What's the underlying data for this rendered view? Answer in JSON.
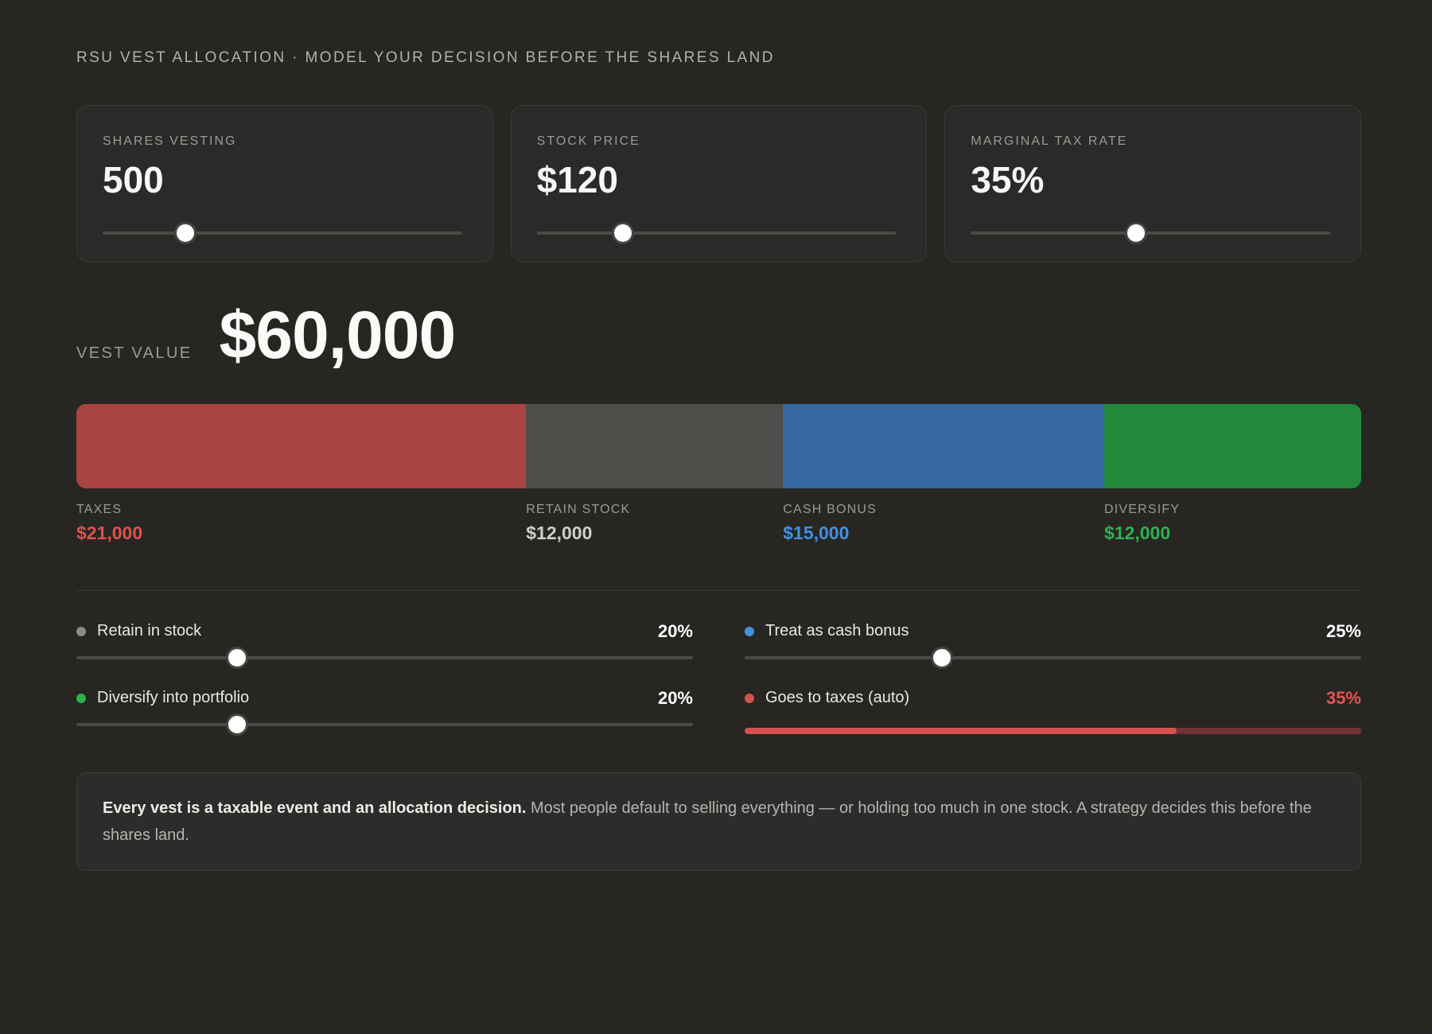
{
  "title": "RSU VEST ALLOCATION · MODEL YOUR DECISION BEFORE THE SHARES LAND",
  "inputs": [
    {
      "label": "SHARES VESTING",
      "value": "500",
      "slider_pct": 23
    },
    {
      "label": "STOCK PRICE",
      "value": "$120",
      "slider_pct": 24
    },
    {
      "label": "MARGINAL TAX RATE",
      "value": "35%",
      "slider_pct": 46
    }
  ],
  "vest": {
    "label": "VEST VALUE",
    "value": "$60,000"
  },
  "chart_data": {
    "type": "bar",
    "title": "Vest value allocation",
    "total_label": "VEST VALUE",
    "total": 60000,
    "segments": [
      {
        "label": "TAXES",
        "value": 21000,
        "display": "$21,000",
        "pct": 35,
        "color": "#aa4441",
        "value_color": "#df514d"
      },
      {
        "label": "RETAIN STOCK",
        "value": 12000,
        "display": "$12,000",
        "pct": 20,
        "color": "#4e4d4a",
        "value_color": "#cfcecb"
      },
      {
        "label": "CASH BONUS",
        "value": 15000,
        "display": "$15,000",
        "pct": 25,
        "color": "#35689e",
        "value_color": "#4190e2"
      },
      {
        "label": "DIVERSIFY",
        "value": 12000,
        "display": "$12,000",
        "pct": 20,
        "color": "#24883a",
        "value_color": "#2cb24c"
      }
    ]
  },
  "allocations": [
    {
      "label": "Retain in stock",
      "value": "20%",
      "dot_color": "#8b8a87",
      "thumb_pct": 26
    },
    {
      "label": "Treat as cash bonus",
      "value": "25%",
      "dot_color": "#4190e2",
      "thumb_pct": 32
    },
    {
      "label": "Diversify into portfolio",
      "value": "20%",
      "dot_color": "#2cb24c",
      "thumb_pct": 26
    },
    {
      "label": "Goes to taxes (auto)",
      "value": "35%",
      "dot_color": "#d4524e",
      "value_color": "#e25551",
      "fill_pct": 70,
      "fill_color": "#d4524e",
      "track_color": "#703432"
    }
  ],
  "note": {
    "bold": "Every vest is a taxable event and an allocation decision.",
    "rest": " Most people default to selling everything — or holding too much in one stock. A strategy decides this before the shares land."
  }
}
